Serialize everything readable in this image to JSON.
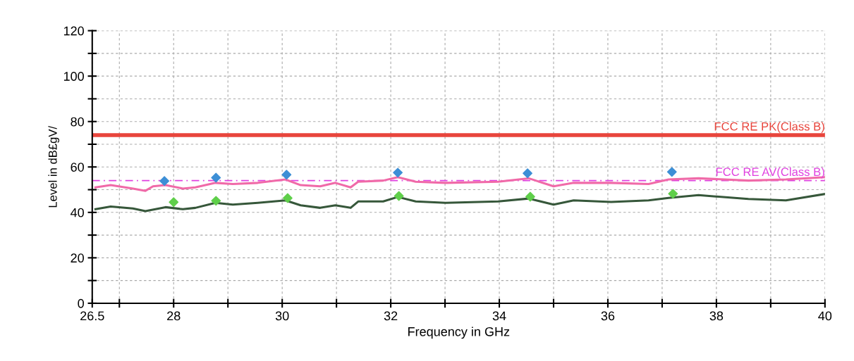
{
  "chart_data": {
    "type": "line",
    "xlabel": "Frequency in GHz",
    "ylabel": "Level in dB£gV/",
    "xlim": [
      26.5,
      40
    ],
    "ylim": [
      0,
      120
    ],
    "xticks": [
      26.5,
      {
        "value": 27,
        "label": null
      },
      28,
      {
        "value": 29,
        "label": null
      },
      30,
      {
        "value": 31,
        "label": null
      },
      32,
      {
        "value": 33,
        "label": null
      },
      34,
      {
        "value": 35,
        "label": null
      },
      36,
      {
        "value": 37,
        "label": null
      },
      38,
      {
        "value": 39,
        "label": null
      },
      40
    ],
    "yticks": [
      0,
      {
        "value": 10,
        "label": null
      },
      20,
      {
        "value": 30,
        "label": null
      },
      40,
      {
        "value": 50,
        "label": null
      },
      60,
      {
        "value": 70,
        "label": null
      },
      80,
      {
        "value": 90,
        "label": null
      },
      100,
      {
        "value": 110,
        "label": null
      },
      120
    ],
    "grid": true,
    "series": [
      {
        "color": "#f06aa8",
        "marker": "none",
        "x": [
          26.56,
          26.84,
          27.25,
          27.48,
          27.62,
          27.85,
          28.17,
          28.4,
          28.77,
          29.09,
          29.55,
          30.06,
          30.34,
          30.7,
          30.98,
          31.26,
          31.4,
          31.86,
          32.13,
          32.46,
          33.01,
          33.98,
          34.54,
          35.0,
          35.37,
          36.06,
          36.75,
          37.12,
          37.67,
          38.59,
          39.28,
          40.0
        ],
        "values": [
          51,
          52,
          50.5,
          49.5,
          51.5,
          52,
          50.5,
          51,
          53,
          52.5,
          53,
          54.5,
          52,
          51.5,
          53,
          51,
          53.5,
          54,
          55.5,
          53.5,
          53,
          53.5,
          55,
          51.5,
          53,
          53,
          52.5,
          54.5,
          55,
          54,
          54.5,
          55.5
        ]
      },
      {
        "color": "#36573a",
        "marker": "none",
        "x": [
          26.56,
          26.84,
          27.25,
          27.48,
          27.85,
          28.17,
          28.4,
          28.77,
          29.09,
          29.55,
          30.06,
          30.34,
          30.7,
          30.98,
          31.26,
          31.4,
          31.86,
          32.13,
          32.46,
          33.01,
          33.98,
          34.54,
          35.0,
          35.37,
          36.06,
          36.75,
          37.12,
          37.67,
          38.59,
          39.28,
          40.0
        ],
        "values": [
          41.4,
          42.6,
          41.7,
          40.6,
          42.3,
          41.4,
          42,
          44.2,
          43.4,
          44.2,
          45.3,
          43.1,
          42,
          43.1,
          42,
          44.8,
          44.8,
          46.8,
          44.8,
          44.2,
          44.8,
          46.1,
          43.4,
          45.3,
          44.6,
          45.3,
          46.4,
          47.6,
          45.9,
          45.3,
          48.1
        ]
      },
      {
        "type": "scatter",
        "color": "#3d8fd6",
        "marker": "diamond",
        "x": [
          27.83,
          28.78,
          30.08,
          32.13,
          34.52,
          37.18
        ],
        "values": [
          53.8,
          55.3,
          56.6,
          57.5,
          57.2,
          57.8
        ]
      },
      {
        "type": "scatter",
        "color": "#5fcf4a",
        "marker": "diamond",
        "x": [
          28.0,
          28.78,
          30.1,
          32.15,
          34.57,
          37.2
        ],
        "values": [
          44.5,
          45.1,
          46.3,
          47.2,
          46.9,
          48.2
        ]
      }
    ],
    "ref_lines": [
      {
        "axis": "y",
        "value": 74,
        "label": "FCC RE PK(Class B)",
        "color": "#e8453c",
        "line_style": "solid"
      },
      {
        "axis": "y",
        "value": 54,
        "label": "FCC RE AV(Class B)",
        "color": "#e040e0",
        "line_style": "dashed"
      }
    ]
  }
}
